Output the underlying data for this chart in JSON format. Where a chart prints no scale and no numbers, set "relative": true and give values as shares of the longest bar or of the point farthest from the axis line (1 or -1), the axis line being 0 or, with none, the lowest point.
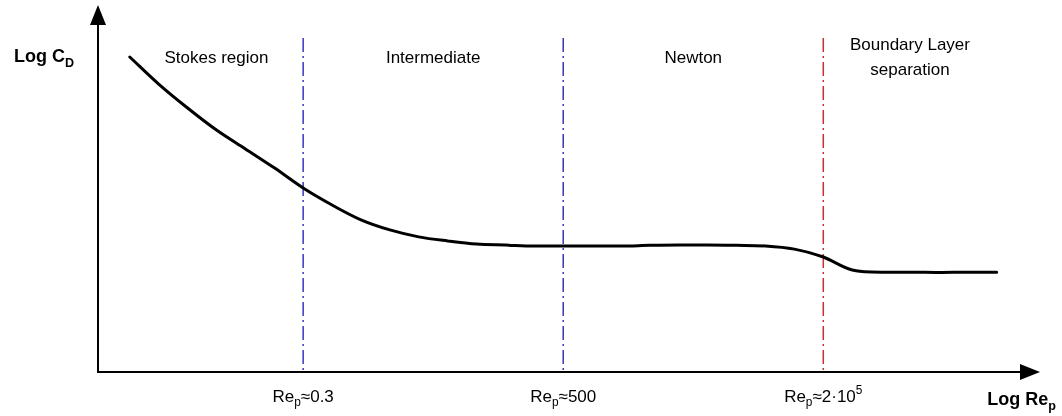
{
  "chart_data": {
    "type": "line",
    "relative": true,
    "xlabel": "Log Re$_{p}$",
    "ylabel": "Log C$_{D}$",
    "categories": [
      null,
      null,
      null,
      null,
      null,
      null,
      "Re$_{p}$≈0.3",
      null,
      null,
      null,
      null,
      null,
      null,
      null,
      null,
      "Re$_{p}$≈500",
      null,
      null,
      null,
      null,
      null,
      null,
      null,
      null,
      "Re$_{p}$≈2·10$^{5}$",
      null,
      null,
      null,
      null,
      null,
      null
    ],
    "series": [
      {
        "color": "#000000",
        "values": [
          1.0,
          0.914,
          0.838,
          0.768,
          0.708,
          0.648,
          0.584,
          0.53,
          0.483,
          0.451,
          0.429,
          0.416,
          0.406,
          0.403,
          0.4,
          0.4,
          0.4,
          0.4,
          0.402,
          0.403,
          0.403,
          0.402,
          0.4,
          0.39,
          0.365,
          0.324,
          0.317,
          0.317,
          0.316,
          0.317,
          0.317
        ]
      }
    ],
    "ref_lines": [
      {
        "axis": "x",
        "value": "Re$_{p}$≈0.3",
        "color": "#3333dd",
        "line_style": "dashed"
      },
      {
        "axis": "x",
        "value": "Re$_{p}$≈500",
        "color": "#3333dd",
        "line_style": "dashed"
      },
      {
        "axis": "x",
        "value": "Re$_{p}$≈2·10$^{5}$",
        "color": "#ff1a1a",
        "line_style": "dashed"
      }
    ],
    "annotations": [
      "Stokes region",
      "Intermediate",
      "Newton",
      "Boundary Layer separation"
    ],
    "line_style": "solid"
  }
}
